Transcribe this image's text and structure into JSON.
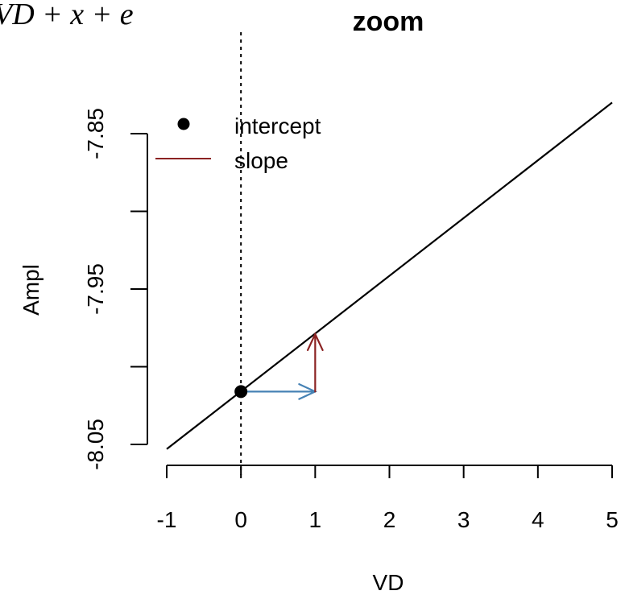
{
  "header": {
    "partial_formula": "VD + x + e"
  },
  "chart_data": {
    "type": "line",
    "title": "zoom",
    "xlabel": "VD",
    "ylabel": "Ampl",
    "xlim": [
      -1,
      5
    ],
    "ylim": [
      -8.05,
      -7.85
    ],
    "x_ticks": [
      "-1",
      "0",
      "1",
      "2",
      "3",
      "4",
      "5"
    ],
    "y_ticks": [
      "-8.05",
      "-7.95",
      "-7.85"
    ],
    "line": {
      "x": [
        -1,
        5
      ],
      "y": [
        -8.053,
        -7.83
      ],
      "color": "#000000"
    },
    "intercept_point": {
      "x": 0,
      "y": -8.016,
      "color": "#000000"
    },
    "vertical_reference": {
      "x": 0,
      "style": "dotted"
    },
    "run_arrow": {
      "from": [
        0,
        -8.016
      ],
      "to": [
        1,
        -8.016
      ],
      "color": "#4682b4"
    },
    "rise_arrow": {
      "from": [
        1,
        -8.016
      ],
      "to": [
        1,
        -7.979
      ],
      "color": "#8b2323"
    },
    "legend": {
      "placement": "top-left",
      "entries": [
        {
          "label": "intercept",
          "marker": "point",
          "color": "#000000"
        },
        {
          "label": "slope",
          "marker": "line",
          "color": "#8b2323"
        }
      ]
    }
  }
}
